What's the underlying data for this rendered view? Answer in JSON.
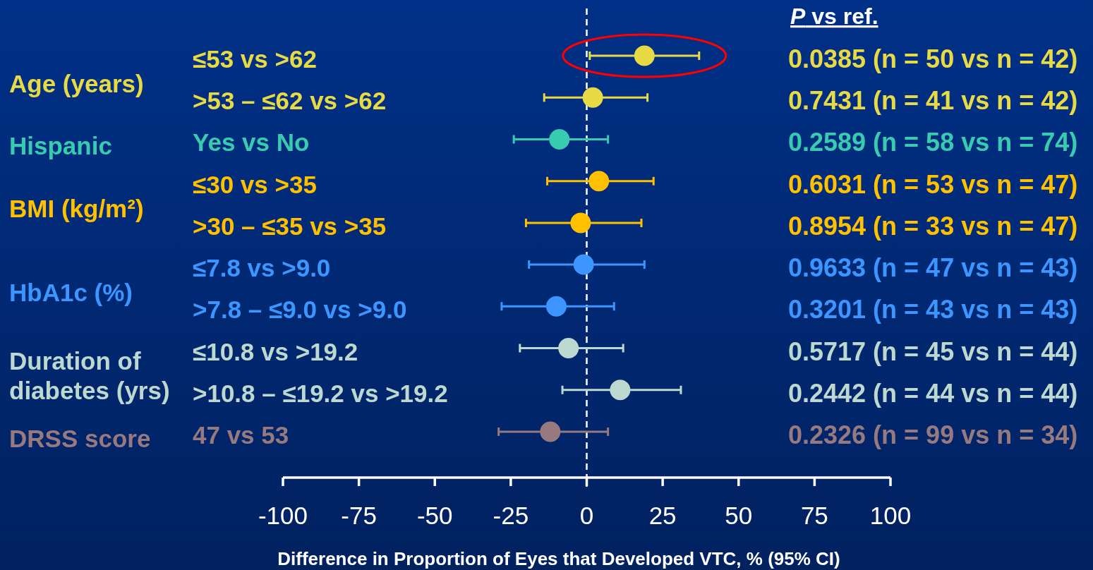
{
  "chart_data": {
    "type": "scatter",
    "orientation": "horizontal",
    "xlabel": "Difference in Proportion of Eyes that Developed VTC, % (95% CI)",
    "categories": [
      "≤53 vs >62",
      ">53 – ≤62 vs >62",
      "Yes vs No",
      "≤30 vs >35",
      ">30 – ≤35 vs >35",
      "≤7.8 vs >9.0",
      ">7.8 – ≤9.0 vs >9.0",
      "≤10.8 vs >19.2",
      ">10.8 – ≤19.2 vs >19.2",
      "47 vs 53"
    ],
    "series": [
      {
        "name": "Age (years)",
        "color": "#e8da44",
        "values": [
          19,
          2,
          null,
          null,
          null,
          null,
          null,
          null,
          null,
          null
        ],
        "errors": [
          [
            1,
            37
          ],
          [
            -14,
            20
          ],
          null,
          null,
          null,
          null,
          null,
          null,
          null,
          null
        ]
      },
      {
        "name": "Hispanic",
        "color": "#39cbb0",
        "values": [
          null,
          null,
          -9,
          null,
          null,
          null,
          null,
          null,
          null,
          null
        ],
        "errors": [
          null,
          null,
          [
            -24,
            7
          ],
          null,
          null,
          null,
          null,
          null,
          null,
          null
        ]
      },
      {
        "name": "BMI (kg/m²)",
        "color": "#ffc000",
        "values": [
          null,
          null,
          null,
          4,
          -2,
          null,
          null,
          null,
          null,
          null
        ],
        "errors": [
          null,
          null,
          null,
          [
            -13,
            22
          ],
          [
            -20,
            18
          ],
          null,
          null,
          null,
          null,
          null
        ]
      },
      {
        "name": "HbA1c (%)",
        "color": "#3d95ff",
        "values": [
          null,
          null,
          null,
          null,
          null,
          -1,
          -10,
          null,
          null,
          null
        ],
        "errors": [
          null,
          null,
          null,
          null,
          null,
          [
            -19,
            19
          ],
          [
            -28,
            9
          ],
          null,
          null,
          null
        ]
      },
      {
        "name": "Duration of diabetes (yrs)",
        "color": "#bdd9cf",
        "values": [
          null,
          null,
          null,
          null,
          null,
          null,
          null,
          -6,
          11,
          null
        ],
        "errors": [
          null,
          null,
          null,
          null,
          null,
          null,
          null,
          [
            -22,
            12
          ],
          [
            -8,
            31
          ],
          null
        ]
      },
      {
        "name": "DRSS score",
        "color": "#977a7f",
        "values": [
          null,
          null,
          null,
          null,
          null,
          null,
          null,
          null,
          null,
          -12
        ],
        "errors": [
          null,
          null,
          null,
          null,
          null,
          null,
          null,
          null,
          null,
          [
            -29,
            7
          ]
        ]
      }
    ],
    "xlim": [
      -100,
      100
    ],
    "xticks": [
      -100,
      -75,
      -50,
      -25,
      0,
      25,
      50,
      75,
      100
    ],
    "marker": "circle",
    "ref_lines": [
      {
        "axis": "x",
        "value": 0,
        "color": "#ffffff",
        "line_style": "dashed"
      }
    ],
    "annotations": [
      "P vs ref.",
      "0.0385 (n = 50 vs n = 42)",
      "0.7431 (n = 41 vs n = 42)",
      "0.2589 (n = 58 vs n = 74)",
      "0.6031 (n = 53 vs n = 47)",
      "0.8954 (n = 33 vs n = 47)",
      "0.9633 (n = 47 vs n = 43)",
      "0.3201 (n = 43 vs n = 43)",
      "0.5717 (n = 45 vs n = 44)",
      "0.2442 (n = 44 vs n = 44)",
      "0.2326 (n = 99 vs n = 34)"
    ]
  }
}
